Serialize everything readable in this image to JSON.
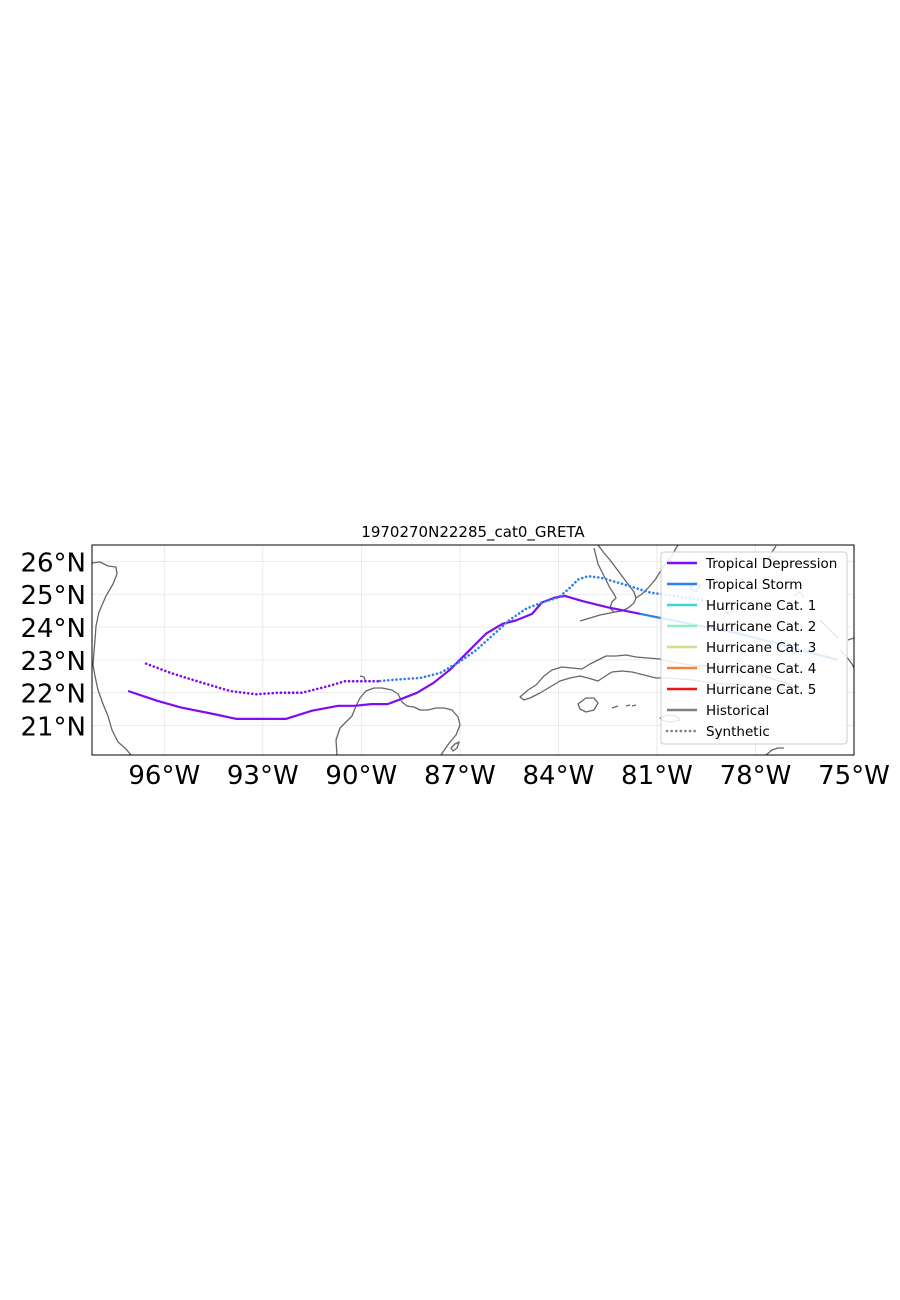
{
  "title": "1970270N22285_cat0_GRETA",
  "map": {
    "extent": {
      "lon": [
        -98.2,
        -75.0
      ],
      "lat": [
        20.1,
        26.5
      ]
    },
    "x_ticks": [
      {
        "value": -96,
        "label": "96°W"
      },
      {
        "value": -93,
        "label": "93°W"
      },
      {
        "value": -90,
        "label": "90°W"
      },
      {
        "value": -87,
        "label": "87°W"
      },
      {
        "value": -84,
        "label": "84°W"
      },
      {
        "value": -81,
        "label": "81°W"
      },
      {
        "value": -78,
        "label": "78°W"
      },
      {
        "value": -75,
        "label": "75°W"
      }
    ],
    "y_ticks": [
      {
        "value": 26,
        "label": "26°N"
      },
      {
        "value": 25,
        "label": "25°N"
      },
      {
        "value": 24,
        "label": "24°N"
      },
      {
        "value": 23,
        "label": "23°N"
      },
      {
        "value": 22,
        "label": "22°N"
      },
      {
        "value": 21,
        "label": "21°N"
      }
    ],
    "grid": true,
    "coastline_color": "#666666"
  },
  "legend": {
    "placement": "upper-right",
    "entries": [
      {
        "label": "Tropical Depression",
        "color": "#7f0df2",
        "style": "solid"
      },
      {
        "label": "Tropical Storm",
        "color": "#2f7fe8",
        "style": "solid"
      },
      {
        "label": "Hurricane Cat. 1",
        "color": "#3bd6d6",
        "style": "solid"
      },
      {
        "label": "Hurricane Cat. 2",
        "color": "#8cf0c2",
        "style": "solid"
      },
      {
        "label": "Hurricane Cat. 3",
        "color": "#d2de8a",
        "style": "solid"
      },
      {
        "label": "Hurricane Cat. 4",
        "color": "#f5803f",
        "style": "solid"
      },
      {
        "label": "Hurricane Cat. 5",
        "color": "#ee1515",
        "style": "solid"
      },
      {
        "label": "Historical",
        "color": "#808080",
        "style": "solid"
      },
      {
        "label": "Synthetic",
        "color": "#808080",
        "style": "dotted"
      }
    ]
  },
  "tracks": [
    {
      "name": "Historical",
      "style": "solid",
      "segments": [
        {
          "category": "Tropical Storm",
          "color": "#2f7fe8",
          "points": [
            [
              -75.5,
              23.0
            ],
            [
              -77,
              23.4
            ],
            [
              -78.5,
              23.8
            ],
            [
              -80,
              24.1
            ],
            [
              -81.5,
              24.4
            ]
          ]
        },
        {
          "category": "Tropical Depression",
          "color": "#7f0df2",
          "points": [
            [
              -81.5,
              24.4
            ],
            [
              -82.5,
              24.6
            ],
            [
              -83.3,
              24.8
            ],
            [
              -83.8,
              24.95
            ],
            [
              -84.1,
              24.9
            ],
            [
              -84.5,
              24.75
            ],
            [
              -84.8,
              24.4
            ],
            [
              -85.3,
              24.2
            ],
            [
              -85.7,
              24.1
            ],
            [
              -86.2,
              23.8
            ],
            [
              -86.8,
              23.2
            ],
            [
              -87.3,
              22.7
            ],
            [
              -87.8,
              22.3
            ],
            [
              -88.3,
              22.0
            ],
            [
              -88.8,
              21.8
            ],
            [
              -89.2,
              21.65
            ],
            [
              -89.7,
              21.65
            ],
            [
              -90.2,
              21.6
            ],
            [
              -90.7,
              21.6
            ],
            [
              -91.5,
              21.45
            ],
            [
              -92.3,
              21.2
            ],
            [
              -93.0,
              21.2
            ],
            [
              -93.8,
              21.2
            ],
            [
              -94.5,
              21.35
            ],
            [
              -95.5,
              21.55
            ],
            [
              -96.2,
              21.75
            ],
            [
              -97.1,
              22.05
            ]
          ]
        }
      ]
    },
    {
      "name": "Synthetic",
      "style": "dotted",
      "segments": [
        {
          "category": "Tropical Storm",
          "color": "#2f7fe8",
          "points": [
            [
              -79.5,
              24.8
            ],
            [
              -80.5,
              24.95
            ],
            [
              -81.2,
              25.05
            ],
            [
              -82.0,
              25.3
            ],
            [
              -82.7,
              25.5
            ],
            [
              -83.1,
              25.55
            ],
            [
              -83.4,
              25.45
            ],
            [
              -83.7,
              25.15
            ],
            [
              -84.0,
              24.9
            ],
            [
              -84.5,
              24.75
            ],
            [
              -85.0,
              24.55
            ],
            [
              -85.5,
              24.2
            ],
            [
              -86.0,
              23.75
            ],
            [
              -86.5,
              23.3
            ],
            [
              -87.0,
              22.95
            ],
            [
              -87.6,
              22.6
            ],
            [
              -88.2,
              22.45
            ],
            [
              -88.9,
              22.4
            ],
            [
              -89.5,
              22.35
            ]
          ]
        },
        {
          "category": "Tropical Depression",
          "color": "#7f0df2",
          "points": [
            [
              -89.5,
              22.35
            ],
            [
              -90.0,
              22.35
            ],
            [
              -90.5,
              22.35
            ],
            [
              -91.0,
              22.2
            ],
            [
              -91.8,
              22.0
            ],
            [
              -92.5,
              22.0
            ],
            [
              -93.2,
              21.95
            ],
            [
              -94.0,
              22.05
            ],
            [
              -95.0,
              22.35
            ],
            [
              -95.8,
              22.6
            ],
            [
              -96.6,
              22.9
            ]
          ]
        }
      ]
    }
  ]
}
